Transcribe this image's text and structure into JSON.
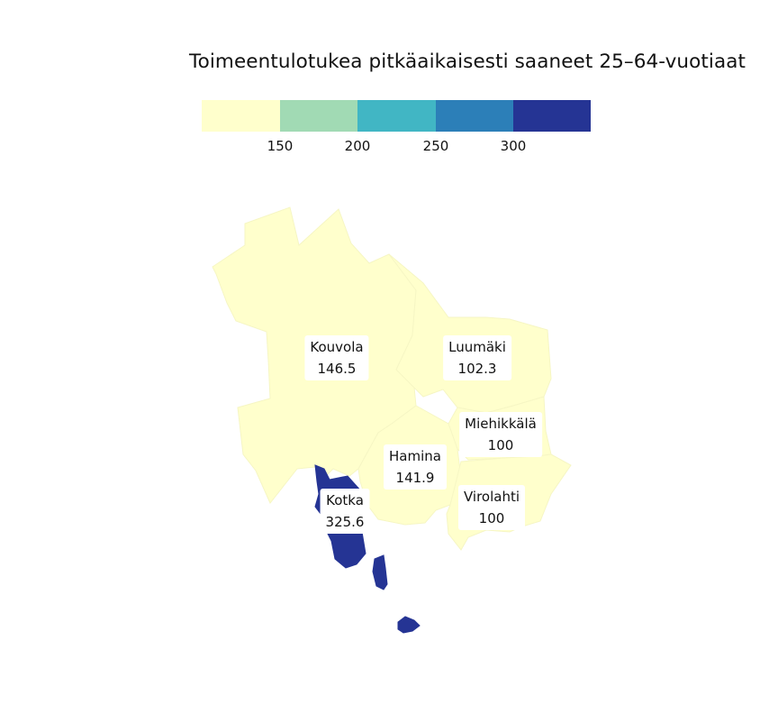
{
  "title": "Toimeentulotukea pitkäaikaisesti saaneet 25–64-vuotiaat",
  "legend": {
    "colors": [
      "#ffffcc",
      "#a1dab4",
      "#41b6c4",
      "#2c7fb8",
      "#253494"
    ],
    "ticks": [
      "150",
      "200",
      "250",
      "300"
    ]
  },
  "regions": [
    {
      "name": "Kouvola",
      "value": "146.5"
    },
    {
      "name": "Luumäki",
      "value": "102.3"
    },
    {
      "name": "Miehikkälä",
      "value": "100"
    },
    {
      "name": "Hamina",
      "value": "141.9"
    },
    {
      "name": "Virolahti",
      "value": "100"
    },
    {
      "name": "Kotka",
      "value": "325.6"
    }
  ]
}
